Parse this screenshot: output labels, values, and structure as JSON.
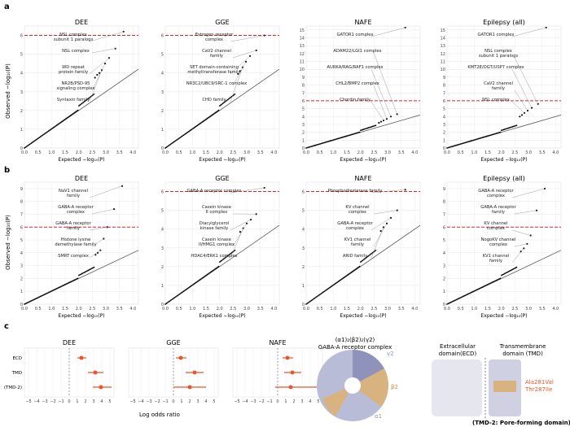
{
  "figure": {
    "panel_labels": [
      "a",
      "b",
      "c"
    ],
    "expected_label": "Expected −log₁₀(P)",
    "observed_label": "Observed −log₁₀(P)",
    "panel_c": {
      "xlabel": "Log odds ratio",
      "rows": [
        "ECD",
        "TMD",
        "(TMD-2)"
      ],
      "structure_title_1": "(α1)₂(β2)₂(γ2)",
      "structure_title_2": "GABA-A receptor complex",
      "subunit_labels": [
        "γ2",
        "β2",
        "α1"
      ],
      "domain_ecd_1": "Extracellular",
      "domain_ecd_2": "domain(ECD)",
      "domain_tmd_1": "Transmembrane",
      "domain_tmd_2": "domain (TMD)",
      "mutations": [
        "Ala281Val",
        "Thr287Ile"
      ],
      "tmd2_caption": "(TMD-2: Pore-forming domain)"
    }
  },
  "chart_data": [
    {
      "type": "scatter",
      "panel": "a",
      "title": "DEE",
      "xlim": [
        0,
        4.2
      ],
      "ylim": [
        0,
        6.5
      ],
      "yticks": [
        0,
        1,
        2,
        3,
        4,
        5,
        6
      ],
      "threshold": 6.0,
      "xticks": [
        "0.0",
        "0.5",
        "1.0",
        "1.5",
        "2.0",
        "2.5",
        "3.0",
        "3.5",
        "4.0"
      ],
      "top_points": [
        [
          3.65,
          6.2
        ],
        [
          3.35,
          5.3
        ],
        [
          3.12,
          4.8
        ],
        [
          2.97,
          4.5
        ],
        [
          2.85,
          4.15
        ],
        [
          2.76,
          4.0
        ],
        [
          2.68,
          3.9
        ],
        [
          2.6,
          3.75
        ]
      ],
      "annotations": [
        {
          "label": [
            "NSL complex",
            "subunit 1 paralogs"
          ],
          "x": 3.65,
          "y": 6.2
        },
        {
          "label": [
            "NSL complex"
          ],
          "x": 3.35,
          "y": 5.3
        },
        {
          "label": [
            "WD repeat",
            "protein family"
          ],
          "x": 3.12,
          "y": 4.8
        },
        {
          "label": [
            "NR2B/PSD-95",
            "signaling complex"
          ],
          "x": 2.97,
          "y": 4.5
        },
        {
          "label": [
            "Syntaxin family"
          ],
          "x": 2.85,
          "y": 4.15
        }
      ]
    },
    {
      "type": "scatter",
      "panel": "a",
      "title": "GGE",
      "xlim": [
        0,
        4.2
      ],
      "ylim": [
        0,
        6.5
      ],
      "yticks": [
        0,
        1,
        2,
        3,
        4,
        5,
        6
      ],
      "threshold": 6.0,
      "xticks": [
        "0.0",
        "0.5",
        "1.0",
        "1.5",
        "2.0",
        "2.5",
        "3.0",
        "3.5",
        "4.0"
      ],
      "top_points": [
        [
          3.65,
          6.0
        ],
        [
          3.35,
          5.2
        ],
        [
          3.12,
          4.9
        ],
        [
          2.97,
          4.6
        ],
        [
          2.85,
          4.3
        ],
        [
          2.76,
          4.1
        ],
        [
          2.68,
          3.95
        ]
      ],
      "annotations": [
        {
          "label": [
            "Estrogen receptor",
            "complex"
          ],
          "x": 3.65,
          "y": 6.0
        },
        {
          "label": [
            "CaV2 channel",
            "family"
          ],
          "x": 3.35,
          "y": 5.2
        },
        {
          "label": [
            "SET domain-containing",
            "methyltransferase family"
          ],
          "x": 3.12,
          "y": 4.9
        },
        {
          "label": [
            "NR3C2/UBC9/SRC-1 complex"
          ],
          "x": 2.97,
          "y": 4.6
        },
        {
          "label": [
            "CHD family"
          ],
          "x": 2.85,
          "y": 4.3
        }
      ]
    },
    {
      "type": "scatter",
      "panel": "a",
      "title": "NAFE",
      "xlim": [
        0,
        4.2
      ],
      "ylim": [
        0,
        15.5
      ],
      "yticks": [
        0,
        1,
        2,
        3,
        4,
        5,
        6,
        7,
        8,
        9,
        10,
        11,
        12,
        13,
        14,
        15
      ],
      "threshold": 6.0,
      "xticks": [
        "0.0",
        "0.5",
        "1.0",
        "1.5",
        "2.0",
        "2.5",
        "3.0",
        "3.5",
        "4.0"
      ],
      "top_points": [
        [
          3.65,
          15.3
        ],
        [
          3.35,
          4.3
        ],
        [
          3.12,
          4.0
        ],
        [
          2.97,
          3.7
        ],
        [
          2.85,
          3.5
        ],
        [
          2.76,
          3.35
        ],
        [
          2.68,
          3.2
        ]
      ],
      "annotations": [
        {
          "label": [
            "GATOR1 complex"
          ],
          "x": 3.65,
          "y": 15.3
        },
        {
          "label": [
            "ADAM22/LGI1 complex"
          ],
          "x": 3.35,
          "y": 4.3
        },
        {
          "label": [
            "AURKA/RAG/RAF1 complex"
          ],
          "x": 3.12,
          "y": 4.0
        },
        {
          "label": [
            "CHL2/BMP2 complex"
          ],
          "x": 2.97,
          "y": 3.7
        },
        {
          "label": [
            "Chordin family"
          ],
          "x": 2.85,
          "y": 3.5
        }
      ]
    },
    {
      "type": "scatter",
      "panel": "a",
      "title": "Epilepsy (all)",
      "xlim": [
        0,
        4.2
      ],
      "ylim": [
        0,
        15.5
      ],
      "yticks": [
        0,
        1,
        2,
        3,
        4,
        5,
        6,
        7,
        8,
        9,
        10,
        11,
        12,
        13,
        14,
        15
      ],
      "threshold": 6.0,
      "xticks": [
        "0.0",
        "0.5",
        "1.0",
        "1.5",
        "2.0",
        "2.5",
        "3.0",
        "3.5",
        "4.0"
      ],
      "top_points": [
        [
          3.65,
          15.3
        ],
        [
          3.35,
          5.6
        ],
        [
          3.12,
          5.1
        ],
        [
          2.97,
          4.75
        ],
        [
          2.85,
          4.45
        ],
        [
          2.76,
          4.2
        ],
        [
          2.68,
          4.0
        ]
      ],
      "annotations": [
        {
          "label": [
            "GATOR1 complex"
          ],
          "x": 3.65,
          "y": 15.3
        },
        {
          "label": [
            "NSL complex",
            "subunit 1 paralogs"
          ],
          "x": 3.35,
          "y": 5.6
        },
        {
          "label": [
            "KMT2E/OGT/USP7 complex"
          ],
          "x": 3.12,
          "y": 5.1
        },
        {
          "label": [
            "CaV2 channel",
            "family"
          ],
          "x": 2.97,
          "y": 4.75
        },
        {
          "label": [
            "NSL complex"
          ],
          "x": 2.85,
          "y": 4.45
        }
      ]
    },
    {
      "type": "scatter",
      "panel": "b",
      "title": "DEE",
      "xlim": [
        0,
        4.2
      ],
      "ylim": [
        0,
        9.5
      ],
      "yticks": [
        0,
        1,
        2,
        3,
        4,
        5,
        6,
        7,
        8,
        9
      ],
      "threshold": 6.0,
      "xticks": [
        "0.0",
        "0.5",
        "1.0",
        "1.5",
        "2.0",
        "2.5",
        "3.0",
        "3.5",
        "4.0"
      ],
      "top_points": [
        [
          3.6,
          9.2
        ],
        [
          3.3,
          7.4
        ],
        [
          3.05,
          6.0
        ],
        [
          2.92,
          5.1
        ],
        [
          2.8,
          4.2
        ],
        [
          2.7,
          4.0
        ],
        [
          2.62,
          3.85
        ]
      ],
      "annotations": [
        {
          "label": [
            "NaV1 channel",
            "family"
          ],
          "x": 3.6,
          "y": 9.2
        },
        {
          "label": [
            "GABA-A receptor",
            "complex"
          ],
          "x": 3.3,
          "y": 7.4
        },
        {
          "label": [
            "GABA-A receptor",
            "family"
          ],
          "x": 3.05,
          "y": 6.0
        },
        {
          "label": [
            "Histone lysine",
            "demethylase family"
          ],
          "x": 2.92,
          "y": 5.1
        },
        {
          "label": [
            "SMRT complex"
          ],
          "x": 2.8,
          "y": 4.2
        }
      ]
    },
    {
      "type": "scatter",
      "panel": "b",
      "title": "GGE",
      "xlim": [
        0,
        4.2
      ],
      "ylim": [
        0,
        6.5
      ],
      "yticks": [
        0,
        1,
        2,
        3,
        4,
        5,
        6
      ],
      "threshold": 6.0,
      "xticks": [
        "0.0",
        "0.5",
        "1.0",
        "1.5",
        "2.0",
        "2.5",
        "3.0",
        "3.5",
        "4.0"
      ],
      "top_points": [
        [
          3.65,
          6.2
        ],
        [
          3.35,
          4.8
        ],
        [
          3.15,
          4.5
        ],
        [
          3.0,
          4.3
        ],
        [
          2.87,
          4.05
        ],
        [
          2.76,
          3.85
        ]
      ],
      "annotations": [
        {
          "label": [
            "GABA-A receptor complex"
          ],
          "x": 3.65,
          "y": 6.2
        },
        {
          "label": [
            "Casein kinase",
            "II complex"
          ],
          "x": 3.35,
          "y": 4.8
        },
        {
          "label": [
            "Diacylglycerol",
            "kinase family"
          ],
          "x": 3.15,
          "y": 4.5
        },
        {
          "label": [
            "Casein kinase",
            "II/HMG1 complex"
          ],
          "x": 3.0,
          "y": 4.3
        },
        {
          "label": [
            "HDAC4/ERK1 complex"
          ],
          "x": 2.87,
          "y": 4.05
        }
      ]
    },
    {
      "type": "scatter",
      "panel": "b",
      "title": "NAFE",
      "xlim": [
        0,
        4.2
      ],
      "ylim": [
        0,
        6.5
      ],
      "yticks": [
        0,
        1,
        2,
        3,
        4,
        5,
        6
      ],
      "threshold": 6.0,
      "xticks": [
        "0.0",
        "0.5",
        "1.0",
        "1.5",
        "2.0",
        "2.5",
        "3.0",
        "3.5",
        "4.0"
      ],
      "top_points": [
        [
          3.65,
          6.1
        ],
        [
          3.35,
          5.0
        ],
        [
          3.12,
          4.6
        ],
        [
          2.97,
          4.3
        ],
        [
          2.85,
          4.1
        ],
        [
          2.75,
          3.9
        ]
      ],
      "annotations": [
        {
          "label": [
            "Phosphodiesterase family"
          ],
          "x": 3.65,
          "y": 6.1
        },
        {
          "label": [
            "KV channel",
            "complex"
          ],
          "x": 3.35,
          "y": 5.0
        },
        {
          "label": [
            "GABA-A receptor",
            "complex"
          ],
          "x": 3.12,
          "y": 4.6
        },
        {
          "label": [
            "KV1 channel",
            "family"
          ],
          "x": 2.97,
          "y": 4.3
        },
        {
          "label": [
            "ARID family"
          ],
          "x": 2.85,
          "y": 4.1
        }
      ]
    },
    {
      "type": "scatter",
      "panel": "b",
      "title": "Epilepsy (all)",
      "xlim": [
        0,
        4.2
      ],
      "ylim": [
        0,
        9.5
      ],
      "yticks": [
        0,
        1,
        2,
        3,
        4,
        5,
        6,
        7,
        8,
        9
      ],
      "threshold": 6.0,
      "xticks": [
        "0.0",
        "0.5",
        "1.0",
        "1.5",
        "2.0",
        "2.5",
        "3.0",
        "3.5",
        "4.0"
      ],
      "top_points": [
        [
          3.6,
          9.0
        ],
        [
          3.3,
          7.3
        ],
        [
          3.08,
          5.35
        ],
        [
          2.95,
          4.7
        ],
        [
          2.83,
          4.35
        ],
        [
          2.72,
          4.1
        ]
      ],
      "annotations": [
        {
          "label": [
            "GABA-A receptor",
            "complex"
          ],
          "x": 3.6,
          "y": 9.0
        },
        {
          "label": [
            "GABA-A receptor",
            "family"
          ],
          "x": 3.3,
          "y": 7.3
        },
        {
          "label": [
            "KV channel",
            "complex"
          ],
          "x": 3.08,
          "y": 5.35
        },
        {
          "label": [
            "NogoKV channel",
            "complex"
          ],
          "x": 2.95,
          "y": 4.7
        },
        {
          "label": [
            "KV1 channel",
            "family"
          ],
          "x": 2.83,
          "y": 4.35
        }
      ]
    },
    {
      "type": "forest",
      "panel": "c",
      "title": "DEE",
      "xlim": [
        -5.5,
        5.5
      ],
      "xticks": [
        "−5",
        "−4",
        "−3",
        "−2",
        "−1",
        "0",
        "1",
        "2",
        "3",
        "4",
        "5"
      ],
      "rows": [
        {
          "label": "ECD",
          "est": 1.5,
          "lo": 1.0,
          "hi": 2.1
        },
        {
          "label": "TMD",
          "est": 3.2,
          "lo": 2.3,
          "hi": 4.2
        },
        {
          "label": "(TMD-2)",
          "est": 3.9,
          "lo": 2.9,
          "hi": 5.2
        }
      ]
    },
    {
      "type": "forest",
      "panel": "c",
      "title": "GGE",
      "xlim": [
        -5.5,
        5.5
      ],
      "xticks": [
        "−5",
        "−4",
        "−3",
        "−2",
        "−1",
        "0",
        "1",
        "2",
        "3",
        "4",
        "5"
      ],
      "rows": [
        {
          "label": "ECD",
          "est": 0.9,
          "lo": 0.3,
          "hi": 1.6
        },
        {
          "label": "TMD",
          "est": 2.6,
          "lo": 1.5,
          "hi": 3.7
        },
        {
          "label": "(TMD-2)",
          "est": 2.0,
          "lo": 0.0,
          "hi": 4.0
        }
      ]
    },
    {
      "type": "forest",
      "panel": "c",
      "title": "NAFE",
      "xlim": [
        -5.5,
        5.5
      ],
      "xticks": [
        "−5",
        "−4",
        "−3",
        "−2",
        "−1",
        "0",
        "1",
        "2",
        "3",
        "4",
        "5"
      ],
      "rows": [
        {
          "label": "ECD",
          "est": 1.2,
          "lo": 0.6,
          "hi": 1.9
        },
        {
          "label": "TMD",
          "est": 1.8,
          "lo": 0.8,
          "hi": 2.9
        },
        {
          "label": "(TMD-2)",
          "est": 1.6,
          "lo": -0.3,
          "hi": 5.4
        }
      ]
    }
  ]
}
